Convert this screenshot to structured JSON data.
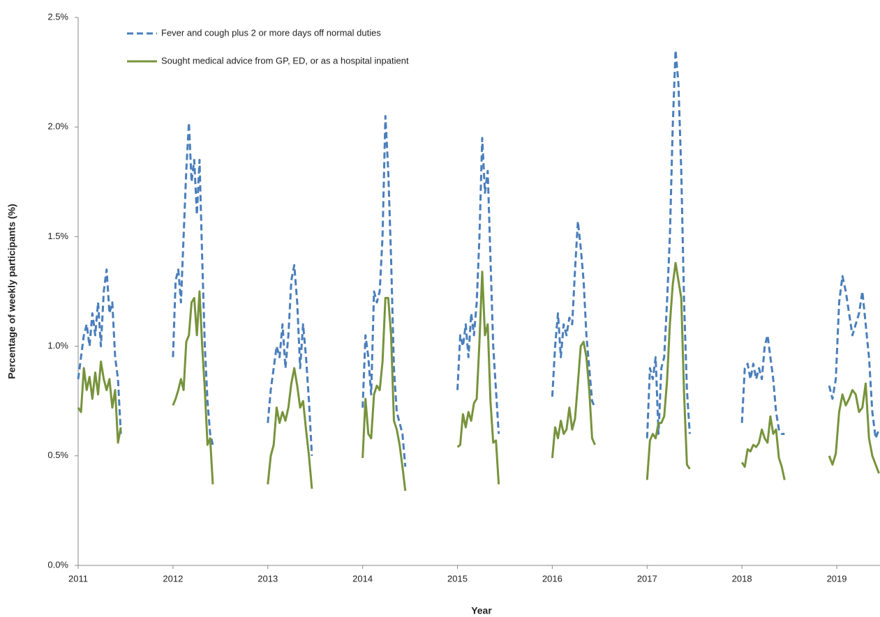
{
  "chart_data": {
    "type": "line",
    "x_label": "Year",
    "y_label": "Percentage of weekly participants (%)",
    "xlim": [
      2011,
      2019.456
    ],
    "xticks": [
      2011,
      2012,
      2013,
      2014,
      2015,
      2016,
      2017,
      2018,
      2019
    ],
    "ylim": [
      0,
      2.5
    ],
    "yticks": [
      {
        "value": 0,
        "label": "0.0%"
      },
      {
        "value": 0.5,
        "label": "0.5%"
      },
      {
        "value": 1,
        "label": "1.0%"
      },
      {
        "value": 1.5,
        "label": "1.5%"
      },
      {
        "value": 2,
        "label": "2.0%"
      },
      {
        "value": 2.5,
        "label": "2.5%"
      }
    ],
    "grid": false,
    "legend": "upper left",
    "x": [
      2011.0,
      2011.03,
      2011.06,
      2011.09,
      2011.12,
      2011.15,
      2011.18,
      2011.21,
      2011.24,
      2011.27,
      2011.3,
      2011.33,
      2011.36,
      2011.39,
      2011.42,
      2011.45,
      null,
      2012.0,
      2012.028,
      2012.056,
      2012.084,
      2012.112,
      2012.14,
      2012.168,
      2012.196,
      2012.224,
      2012.252,
      2012.28,
      2012.308,
      2012.336,
      2012.364,
      2012.392,
      2012.42,
      null,
      2013.0,
      2013.031,
      2013.062,
      2013.093,
      2013.124,
      2013.155,
      2013.186,
      2013.217,
      2013.248,
      2013.279,
      2013.31,
      2013.341,
      2013.372,
      2013.403,
      2013.434,
      2013.465,
      null,
      2014.0,
      2014.03,
      2014.06,
      2014.09,
      2014.12,
      2014.15,
      2014.18,
      2014.21,
      2014.24,
      2014.27,
      2014.3,
      2014.33,
      2014.36,
      2014.39,
      2014.42,
      2014.45,
      null,
      2015.0,
      2015.029,
      2015.058,
      2015.087,
      2015.116,
      2015.145,
      2015.174,
      2015.203,
      2015.232,
      2015.261,
      2015.29,
      2015.319,
      2015.348,
      2015.377,
      2015.406,
      2015.435,
      null,
      2016.0,
      2016.03,
      2016.06,
      2016.09,
      2016.12,
      2016.15,
      2016.18,
      2016.21,
      2016.24,
      2016.27,
      2016.3,
      2016.33,
      2016.36,
      2016.39,
      2016.42,
      2016.45,
      null,
      2017.0,
      2017.03,
      2017.06,
      2017.09,
      2017.12,
      2017.15,
      2017.18,
      2017.21,
      2017.24,
      2017.27,
      2017.3,
      2017.33,
      2017.36,
      2017.39,
      2017.42,
      2017.45,
      null,
      2018.0,
      2018.03,
      2018.06,
      2018.09,
      2018.12,
      2018.15,
      2018.18,
      2018.21,
      2018.24,
      2018.27,
      2018.3,
      2018.33,
      2018.36,
      2018.39,
      2018.42,
      2018.45,
      null,
      2018.92,
      2018.955,
      2018.99,
      2019.025,
      2019.06,
      2019.095,
      2019.13,
      2019.165,
      2019.2,
      2019.235,
      2019.27,
      2019.305,
      2019.34,
      2019.375,
      2019.41,
      2019.445
    ],
    "series": [
      {
        "name": "Fever and cough plus 2 or more days off normal duties",
        "color": "#4a7ebb",
        "line_style": "dashed",
        "values": [
          0.85,
          0.95,
          1.05,
          1.1,
          1.0,
          1.15,
          1.05,
          1.2,
          1.0,
          1.25,
          1.35,
          1.15,
          1.2,
          0.95,
          0.85,
          0.6,
          null,
          0.95,
          1.3,
          1.35,
          1.2,
          1.5,
          1.8,
          2.02,
          1.75,
          1.85,
          1.6,
          1.85,
          1.4,
          1.0,
          0.75,
          0.6,
          0.55,
          null,
          0.65,
          0.8,
          0.9,
          1.0,
          0.95,
          1.1,
          0.9,
          1.05,
          1.3,
          1.37,
          1.2,
          0.9,
          1.1,
          0.95,
          0.75,
          0.5,
          null,
          0.72,
          1.05,
          0.95,
          0.78,
          1.25,
          1.2,
          1.25,
          1.5,
          2.05,
          1.8,
          1.4,
          0.9,
          0.7,
          0.65,
          0.6,
          0.45,
          null,
          0.8,
          1.05,
          1.0,
          1.1,
          0.95,
          1.15,
          1.05,
          1.2,
          1.5,
          1.95,
          1.7,
          1.8,
          1.4,
          1.0,
          0.8,
          0.6,
          null,
          0.77,
          1.0,
          1.15,
          0.95,
          1.1,
          1.05,
          1.13,
          1.1,
          1.35,
          1.57,
          1.45,
          1.3,
          1.05,
          0.9,
          0.75,
          0.72,
          null,
          0.58,
          0.9,
          0.85,
          0.95,
          0.6,
          0.9,
          0.95,
          1.2,
          1.5,
          2.0,
          2.35,
          2.2,
          1.8,
          1.2,
          0.8,
          0.6,
          null,
          0.65,
          0.9,
          0.92,
          0.85,
          0.92,
          0.85,
          0.9,
          0.85,
          1.0,
          1.05,
          0.95,
          0.85,
          0.7,
          0.62,
          0.6,
          0.6,
          null,
          0.82,
          0.76,
          0.85,
          1.2,
          1.32,
          1.25,
          1.15,
          1.05,
          1.1,
          1.15,
          1.25,
          1.1,
          0.95,
          0.7,
          0.58,
          0.62
        ]
      },
      {
        "name": "Sought medical advice from GP, ED, or as a hospital inpatient",
        "color": "#77933c",
        "line_style": "solid",
        "values": [
          0.72,
          0.7,
          0.9,
          0.8,
          0.86,
          0.76,
          0.88,
          0.78,
          0.93,
          0.85,
          0.8,
          0.85,
          0.72,
          0.8,
          0.56,
          0.63,
          null,
          0.73,
          0.76,
          0.8,
          0.85,
          0.8,
          1.02,
          1.05,
          1.2,
          1.22,
          1.05,
          1.25,
          1.0,
          0.8,
          0.55,
          0.58,
          0.37,
          null,
          0.37,
          0.5,
          0.55,
          0.72,
          0.65,
          0.7,
          0.66,
          0.72,
          0.83,
          0.9,
          0.82,
          0.72,
          0.75,
          0.62,
          0.5,
          0.35,
          null,
          0.49,
          0.76,
          0.6,
          0.58,
          0.78,
          0.82,
          0.8,
          0.93,
          1.22,
          1.22,
          1.05,
          0.66,
          0.62,
          0.55,
          0.45,
          0.34,
          null,
          0.54,
          0.55,
          0.69,
          0.63,
          0.7,
          0.66,
          0.74,
          0.76,
          1.02,
          1.34,
          1.05,
          1.1,
          0.75,
          0.56,
          0.57,
          0.37,
          null,
          0.49,
          0.63,
          0.58,
          0.66,
          0.6,
          0.62,
          0.72,
          0.62,
          0.67,
          0.83,
          1.0,
          1.02,
          0.95,
          0.8,
          0.58,
          0.55,
          null,
          0.39,
          0.57,
          0.6,
          0.58,
          0.65,
          0.65,
          0.68,
          0.84,
          1.1,
          1.28,
          1.38,
          1.3,
          1.22,
          0.78,
          0.46,
          0.44,
          null,
          0.47,
          0.45,
          0.53,
          0.52,
          0.55,
          0.54,
          0.56,
          0.62,
          0.58,
          0.56,
          0.68,
          0.6,
          0.62,
          0.49,
          0.45,
          0.39,
          null,
          0.5,
          0.46,
          0.51,
          0.7,
          0.78,
          0.73,
          0.76,
          0.8,
          0.78,
          0.7,
          0.72,
          0.83,
          0.58,
          0.5,
          0.46,
          0.42
        ]
      }
    ]
  }
}
